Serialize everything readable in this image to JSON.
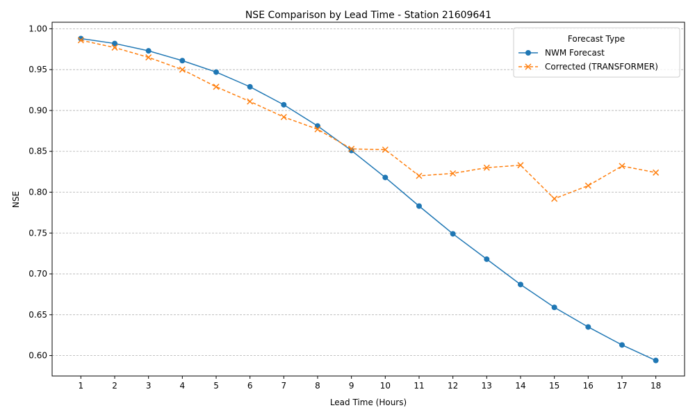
{
  "chart_data": {
    "type": "line",
    "title": "NSE Comparison by Lead Time - Station 21609641",
    "xlabel": "Lead Time (Hours)",
    "ylabel": "NSE",
    "x": [
      1,
      2,
      3,
      4,
      5,
      6,
      7,
      8,
      9,
      10,
      11,
      12,
      13,
      14,
      15,
      16,
      17,
      18
    ],
    "ylim": [
      0.575,
      1.008
    ],
    "yticks": [
      "0.60",
      "0.65",
      "0.70",
      "0.75",
      "0.80",
      "0.85",
      "0.90",
      "0.95",
      "1.00"
    ],
    "grid": "y-dashed",
    "legend": {
      "title": "Forecast Type",
      "placement": "upper right"
    },
    "series": [
      {
        "name": "NWM Forecast",
        "color": "#1f77b4",
        "marker": "circle",
        "linestyle": "solid",
        "values": [
          0.988,
          0.982,
          0.973,
          0.961,
          0.947,
          0.929,
          0.907,
          0.881,
          0.851,
          0.818,
          0.783,
          0.749,
          0.718,
          0.687,
          0.659,
          0.635,
          0.613,
          0.594
        ]
      },
      {
        "name": "Corrected (TRANSFORMER)",
        "color": "#ff7f0e",
        "marker": "x",
        "linestyle": "dashed",
        "values": [
          0.986,
          0.977,
          0.965,
          0.95,
          0.929,
          0.911,
          0.892,
          0.877,
          0.853,
          0.852,
          0.82,
          0.823,
          0.83,
          0.833,
          0.792,
          0.808,
          0.832,
          0.824
        ]
      }
    ]
  }
}
